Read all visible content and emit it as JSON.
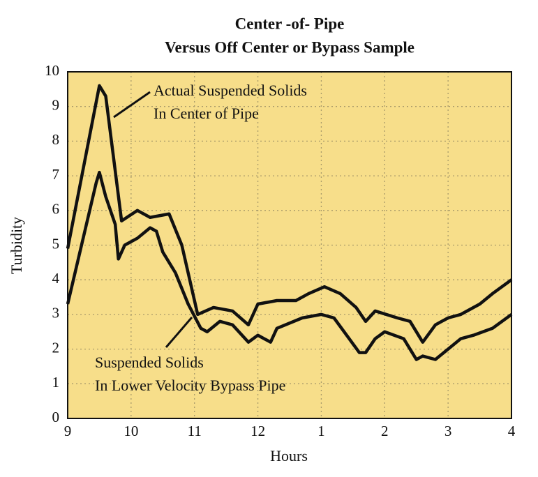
{
  "chart_data": {
    "type": "line",
    "title": [
      "Center -of- Pipe",
      "Versus Off Center or Bypass Sample"
    ],
    "xlabel": "Hours",
    "ylabel": "Turbidity",
    "xlim": [
      9,
      16
    ],
    "ylim": [
      0,
      10
    ],
    "xticks": [
      9,
      10,
      11,
      12,
      {
        "value": 13,
        "label": "1"
      },
      {
        "value": 14,
        "label": "2"
      },
      {
        "value": 15,
        "label": "3"
      },
      {
        "value": 16,
        "label": "4"
      }
    ],
    "yticks": [
      0,
      1,
      2,
      3,
      4,
      5,
      6,
      7,
      8,
      9,
      10
    ],
    "grid": true,
    "background": "#f7de8a",
    "series": [
      {
        "color": "#111111",
        "x": [
          9.0,
          9.5,
          9.6,
          9.85,
          10.1,
          10.3,
          10.6,
          10.8,
          11.05,
          11.3,
          11.6,
          11.85,
          12.0,
          12.3,
          12.6,
          12.8,
          13.05,
          13.3,
          13.55,
          13.7,
          13.85,
          14.2,
          14.4,
          14.6,
          14.8,
          15.0,
          15.2,
          15.5,
          15.7,
          16.0
        ],
        "values": [
          4.9,
          9.6,
          9.3,
          5.7,
          6.0,
          5.8,
          5.9,
          5.0,
          3.0,
          3.2,
          3.1,
          2.7,
          3.3,
          3.4,
          3.4,
          3.6,
          3.8,
          3.6,
          3.2,
          2.8,
          3.1,
          2.9,
          2.8,
          2.2,
          2.7,
          2.9,
          3.0,
          3.3,
          3.6,
          4.0
        ]
      },
      {
        "color": "#111111",
        "x": [
          9.0,
          9.45,
          9.5,
          9.6,
          9.75,
          9.8,
          9.9,
          10.1,
          10.3,
          10.4,
          10.5,
          10.7,
          10.9,
          11.1,
          11.2,
          11.4,
          11.6,
          11.85,
          12.0,
          12.2,
          12.3,
          12.7,
          13.0,
          13.2,
          13.4,
          13.6,
          13.7,
          13.85,
          14.0,
          14.3,
          14.5,
          14.6,
          14.8,
          15.0,
          15.2,
          15.4,
          15.7,
          16.0
        ],
        "values": [
          3.3,
          6.8,
          7.1,
          6.4,
          5.6,
          4.6,
          5.0,
          5.2,
          5.5,
          5.4,
          4.8,
          4.2,
          3.3,
          2.6,
          2.5,
          2.8,
          2.7,
          2.2,
          2.4,
          2.2,
          2.6,
          2.9,
          3.0,
          2.9,
          2.4,
          1.9,
          1.9,
          2.3,
          2.5,
          2.3,
          1.7,
          1.8,
          1.7,
          2.0,
          2.3,
          2.4,
          2.6,
          3.0
        ]
      }
    ],
    "annotations": [
      {
        "lines": [
          "Actual Suspended Solids",
          "In Center of Pipe"
        ]
      },
      {
        "lines": [
          "Suspended Solids",
          "In Lower Velocity Bypass Pipe"
        ]
      }
    ]
  }
}
